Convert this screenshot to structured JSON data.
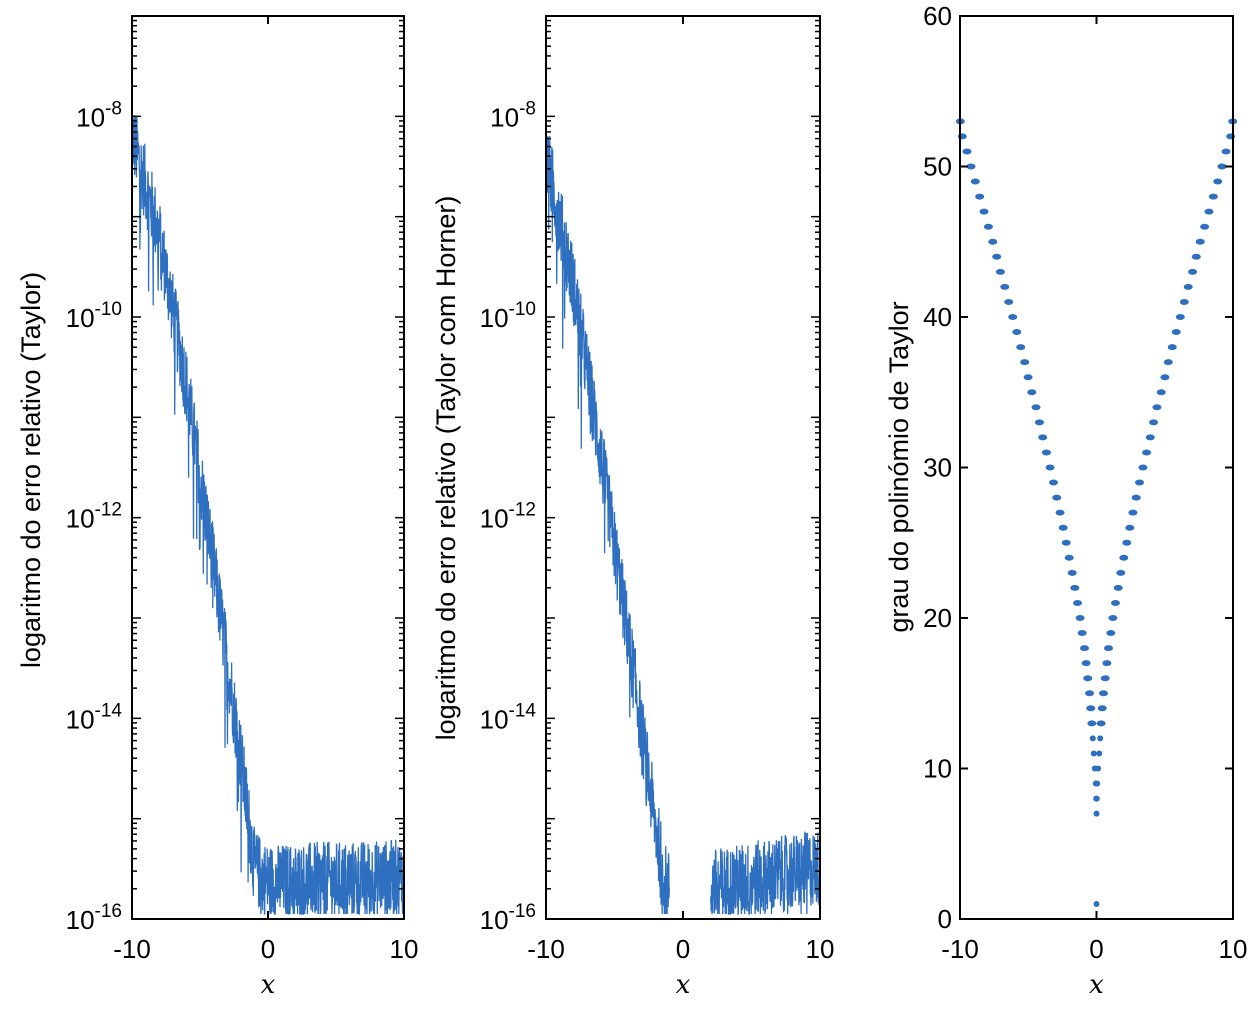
{
  "chart_data": [
    {
      "type": "line",
      "ylabel": "logaritmo do erro relativo (Taylor)",
      "xlabel": "x",
      "xlim": [
        -10,
        10
      ],
      "ylim_log10": [
        -16,
        -7
      ],
      "yscale": "log",
      "xticks": [
        "-10",
        "0",
        "10"
      ],
      "yticks": [
        {
          "base": "10",
          "exp": "-16"
        },
        {
          "base": "10",
          "exp": "-14"
        },
        {
          "base": "10",
          "exp": "-12"
        },
        {
          "base": "10",
          "exp": "-10"
        },
        {
          "base": "10",
          "exp": "-8"
        }
      ],
      "trend_log10": {
        "x": [
          -10,
          -8,
          -6,
          -4,
          -2,
          -1,
          0,
          10
        ],
        "y": [
          -8.3,
          -9.3,
          -10.8,
          -12.6,
          -14.5,
          -15.6,
          -15.75,
          -15.7
        ]
      },
      "noise_decades": 0.55,
      "gap": null,
      "color": "#2f6fbf"
    },
    {
      "type": "line",
      "ylabel": "logaritmo do erro relativo (Taylor com Horner)",
      "xlabel": "x",
      "xlim": [
        -10,
        10
      ],
      "ylim_log10": [
        -16,
        -7
      ],
      "yscale": "log",
      "xticks": [
        "-10",
        "0",
        "10"
      ],
      "yticks": [
        {
          "base": "10",
          "exp": "-16"
        },
        {
          "base": "10",
          "exp": "-14"
        },
        {
          "base": "10",
          "exp": "-12"
        },
        {
          "base": "10",
          "exp": "-10"
        },
        {
          "base": "10",
          "exp": "-8"
        }
      ],
      "trend_log10": {
        "x": [
          -10,
          -8,
          -6,
          -4,
          -2,
          -1.2,
          2,
          10
        ],
        "y": [
          -8.5,
          -9.8,
          -11.5,
          -13.3,
          -15.2,
          -15.8,
          -15.8,
          -15.6
        ]
      },
      "noise_decades": 0.55,
      "gap": [
        -1.0,
        2.0
      ],
      "color": "#2f6fbf"
    },
    {
      "type": "scatter",
      "ylabel": "grau do polinómio de Taylor",
      "xlabel": "x",
      "xlim": [
        -10,
        10
      ],
      "ylim": [
        0,
        60
      ],
      "xticks": [
        "-10",
        "0",
        "10"
      ],
      "yticks": [
        "0",
        "10",
        "20",
        "30",
        "40",
        "50",
        "60"
      ],
      "abs_x": [
        0,
        0,
        0.02,
        0.05,
        0.12,
        0.2,
        0.27,
        0.34,
        0.42,
        0.51,
        0.64,
        0.76,
        0.88,
        1.05,
        1.2,
        1.39,
        1.59,
        1.78,
        2.0,
        2.22,
        2.44,
        2.67,
        2.91,
        3.15,
        3.4,
        3.67,
        3.94,
        4.18,
        4.43,
        4.74,
        5.01,
        5.26,
        5.55,
        5.84,
        6.14,
        6.43,
        6.72,
        7.04,
        7.31,
        7.6,
        7.92,
        8.24,
        8.56,
        8.88,
        9.19,
        9.49,
        9.83,
        9.98
      ],
      "degree": [
        1,
        7,
        8,
        9,
        10,
        11,
        12,
        13,
        14,
        15,
        16,
        17,
        18,
        19,
        20,
        21,
        22,
        23,
        24,
        25,
        26,
        27,
        28,
        29,
        30,
        31,
        32,
        33,
        34,
        35,
        36,
        37,
        38,
        39,
        40,
        41,
        42,
        43,
        44,
        45,
        46,
        47,
        48,
        49,
        50,
        51,
        52,
        53
      ],
      "symmetric": true,
      "color": "#2f6fbf"
    }
  ]
}
